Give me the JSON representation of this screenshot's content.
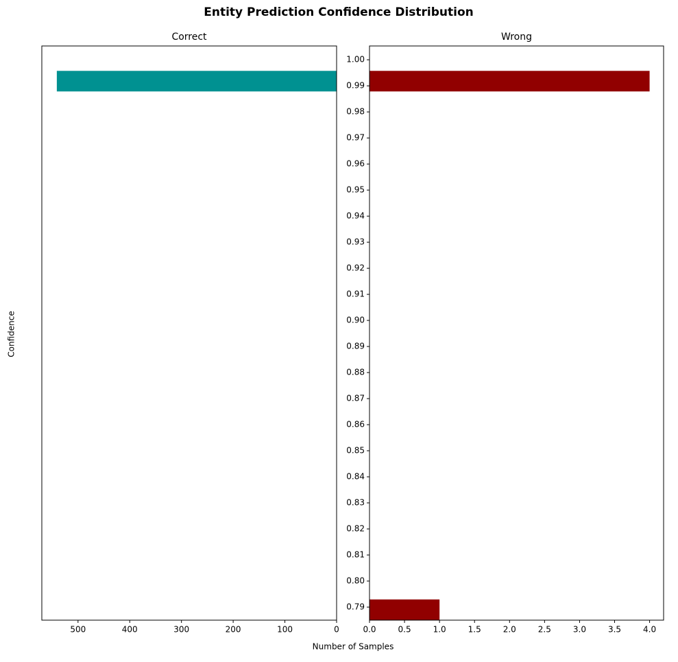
{
  "chart_data": {
    "type": "barh",
    "title": "Entity Prediction Confidence Distribution",
    "ylabel": "Confidence",
    "xlabel": "Number of Samples",
    "ylim": [
      0.785,
      1.0053
    ],
    "yticks": [
      0.79,
      {
        "value": 0.8,
        "label": "0.80"
      },
      0.81,
      0.82,
      0.83,
      0.84,
      0.85,
      0.86,
      0.87,
      0.88,
      0.89,
      {
        "value": 0.9,
        "label": "0.90"
      },
      0.91,
      0.92,
      0.93,
      0.94,
      0.95,
      0.96,
      0.97,
      0.98,
      0.99,
      {
        "value": 1.0,
        "label": "1.00"
      }
    ],
    "panels": [
      {
        "title": "Correct",
        "color": "#009191",
        "y": [
          0.9918
        ],
        "values": [
          541
        ],
        "xlim": [
          570,
          0
        ],
        "xticks": [
          500,
          400,
          300,
          200,
          100,
          0
        ]
      },
      {
        "title": "Wrong",
        "color": "#910000",
        "y": [
          0.9918,
          0.789
        ],
        "values": [
          4,
          1
        ],
        "xlim": [
          0,
          4.2
        ],
        "xticks": [
          {
            "value": 0,
            "label": "0.0"
          },
          0.5,
          {
            "value": 1,
            "label": "1.0"
          },
          1.5,
          {
            "value": 2,
            "label": "2.0"
          },
          2.5,
          {
            "value": 3,
            "label": "3.0"
          },
          3.5,
          {
            "value": 4,
            "label": "4.0"
          }
        ]
      }
    ]
  }
}
